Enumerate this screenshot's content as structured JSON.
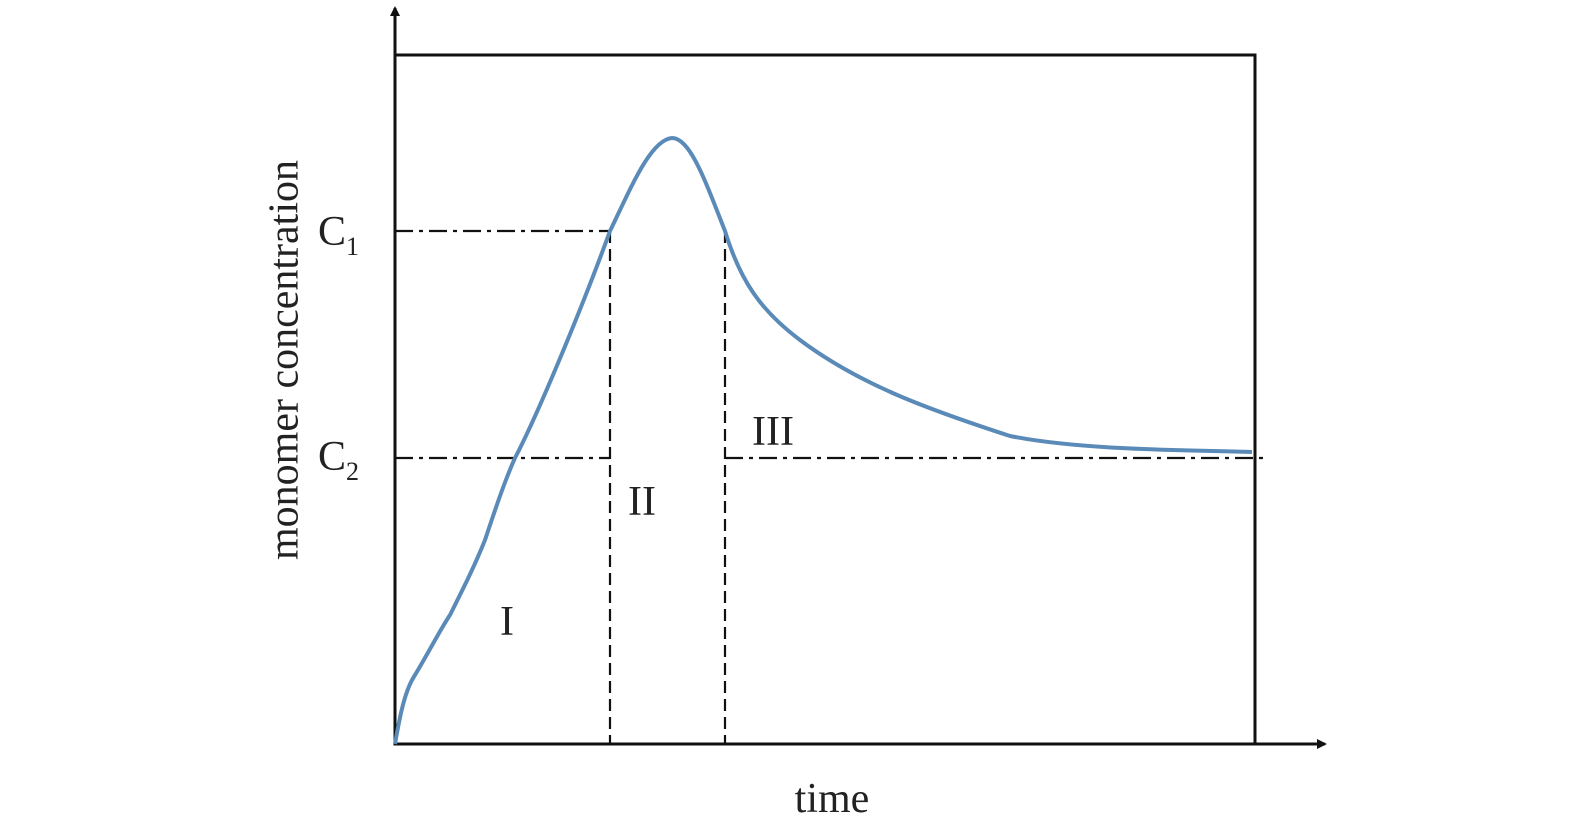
{
  "axes": {
    "y_label": "monomer concentration",
    "x_label": "time"
  },
  "levels": {
    "c1": {
      "base": "C",
      "sub": "1"
    },
    "c2": {
      "base": "C",
      "sub": "2"
    }
  },
  "stages": [
    "I",
    "II",
    "III"
  ]
}
